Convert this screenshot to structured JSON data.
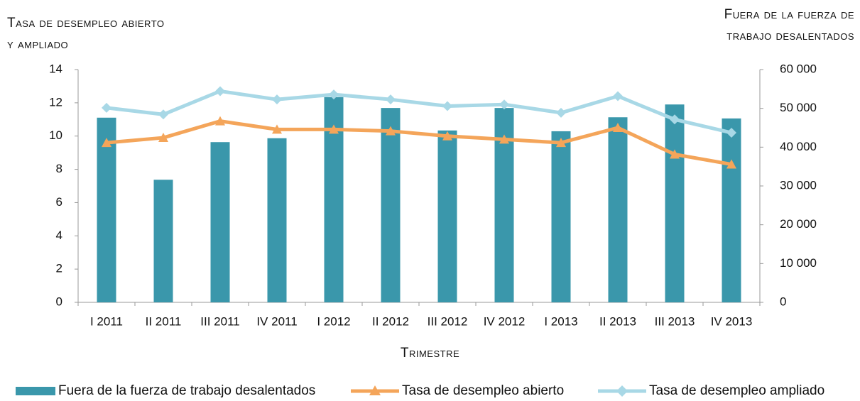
{
  "chart_data": {
    "type": "bar-line",
    "y_label": "Tasa de desempleo abierto y ampliado",
    "y2_label": "Fuera de la fuerza de trabajo desalentados",
    "x_label": "Trimestre",
    "categories": [
      "I 2011",
      "II 2011",
      "III 2011",
      "IV 2011",
      "I 2012",
      "II 2012",
      "III 2012",
      "IV 2012",
      "I 2013",
      "II 2013",
      "III 2013",
      "IV 2013"
    ],
    "series": [
      {
        "name": "Fuera de la fuerza de trabajo desalentados",
        "type": "bar",
        "axis": "y2",
        "color": "#3a97ab",
        "values": [
          47600,
          31600,
          41300,
          42300,
          52900,
          50100,
          44300,
          50100,
          44100,
          47700,
          51000,
          47400
        ]
      },
      {
        "name": "Tasa de desempleo abierto",
        "type": "line",
        "marker": "triangle",
        "color": "#f4a55a",
        "values": [
          9.6,
          9.9,
          10.9,
          10.4,
          10.4,
          10.3,
          10.0,
          9.8,
          9.6,
          10.5,
          8.9,
          8.3
        ]
      },
      {
        "name": "Tasa de desempleo ampliado",
        "type": "line",
        "marker": "diamond",
        "color": "#a8d8e6",
        "values": [
          11.7,
          11.3,
          12.7,
          12.2,
          12.5,
          12.2,
          11.8,
          11.9,
          11.4,
          12.4,
          11.0,
          10.2
        ]
      }
    ],
    "ylim": [
      0,
      14
    ],
    "yticks": [
      0,
      2,
      4,
      6,
      8,
      10,
      12,
      14
    ],
    "y2lim": [
      0,
      60000
    ],
    "y2ticks": [
      0,
      {
        "value": 10000,
        "label": "10 000"
      },
      {
        "value": 20000,
        "label": "20 000"
      },
      {
        "value": 30000,
        "label": "30 000"
      },
      {
        "value": 40000,
        "label": "40 000"
      },
      {
        "value": 50000,
        "label": "50 000"
      },
      {
        "value": 60000,
        "label": "60 000"
      }
    ],
    "legend": "bottom"
  }
}
